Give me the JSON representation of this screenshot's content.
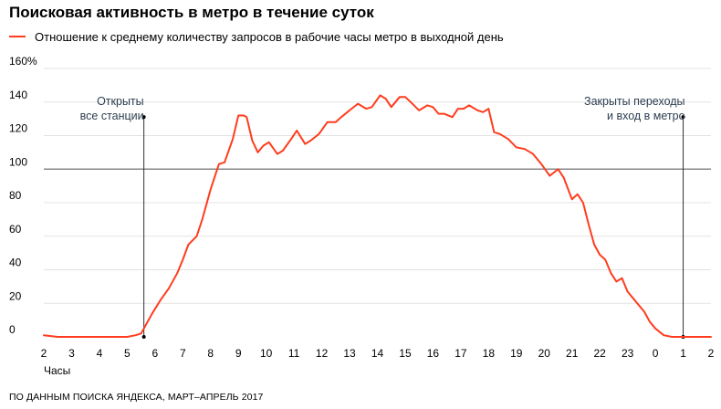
{
  "title": "Поисковая активность в метро в течение суток",
  "legend": {
    "label": "Отношение к среднему количеству запросов в рабочие часы метро в выходной день",
    "color": "#ff3c1e"
  },
  "source": "ПО ДАННЫМ ПОИСКА ЯНДЕКСА, МАРТ–АПРЕЛЬ 2017",
  "chart_data": {
    "type": "line",
    "xlabel": "Часы",
    "ylabel": "",
    "x_tick_labels": [
      "2",
      "3",
      "4",
      "5",
      "6",
      "7",
      "8",
      "9",
      "10",
      "11",
      "12",
      "13",
      "14",
      "15",
      "16",
      "17",
      "18",
      "19",
      "20",
      "21",
      "22",
      "23",
      "0",
      "1",
      "2"
    ],
    "y_ticks": [
      {
        "value": 0,
        "label": "0"
      },
      {
        "value": 20,
        "label": "20"
      },
      {
        "value": 40,
        "label": "40"
      },
      {
        "value": 60,
        "label": "60"
      },
      {
        "value": 80,
        "label": "80"
      },
      {
        "value": 100,
        "label": "100"
      },
      {
        "value": 120,
        "label": "120"
      },
      {
        "value": 140,
        "label": "140"
      },
      {
        "value": 160,
        "label": "160%"
      }
    ],
    "ylim": [
      0,
      160
    ],
    "xlim": [
      2,
      26
    ],
    "grid": true,
    "reference_line": 100,
    "annotations": [
      {
        "x": 5.6,
        "y_text": 130,
        "lines": [
          "Открыты",
          "все станции"
        ],
        "anchor": "end"
      },
      {
        "x": 25.0,
        "y_text": 130,
        "lines": [
          "Закрыты переходы",
          "и вход в метро"
        ],
        "anchor": "end"
      }
    ],
    "series": [
      {
        "color": "#ff3c1e",
        "x": [
          2.0,
          2.5,
          3.0,
          3.5,
          4.0,
          4.5,
          5.0,
          5.3,
          5.5,
          5.7,
          5.9,
          6.2,
          6.5,
          6.8,
          7.0,
          7.2,
          7.5,
          7.7,
          8.0,
          8.3,
          8.5,
          8.8,
          9.0,
          9.2,
          9.3,
          9.5,
          9.7,
          9.9,
          10.1,
          10.4,
          10.6,
          10.9,
          11.1,
          11.4,
          11.6,
          11.9,
          12.2,
          12.5,
          12.7,
          13.0,
          13.3,
          13.6,
          13.8,
          14.1,
          14.3,
          14.5,
          14.8,
          15.0,
          15.2,
          15.5,
          15.8,
          16.0,
          16.2,
          16.4,
          16.7,
          16.9,
          17.1,
          17.3,
          17.6,
          17.8,
          18.0,
          18.2,
          18.4,
          18.7,
          19.0,
          19.3,
          19.6,
          19.9,
          20.2,
          20.5,
          20.7,
          21.0,
          21.2,
          21.4,
          21.6,
          21.8,
          22.0,
          22.2,
          22.4,
          22.6,
          22.8,
          23.0,
          23.2,
          23.4,
          23.6,
          23.8,
          24.0,
          24.3,
          24.6,
          24.9,
          25.1,
          25.3,
          25.6,
          26.0
        ],
        "values": [
          1,
          0,
          0,
          0,
          0,
          0,
          0,
          1,
          2,
          8,
          14,
          22,
          29,
          38,
          46,
          55,
          60,
          70,
          88,
          103,
          104,
          118,
          132,
          132,
          131,
          117,
          110,
          114,
          116,
          109,
          111,
          118,
          123,
          115,
          117,
          121,
          128,
          128,
          131,
          135,
          139,
          136,
          137,
          144,
          142,
          137,
          143,
          143,
          140,
          135,
          138,
          137,
          133,
          133,
          131,
          136,
          136,
          138,
          135,
          134,
          136,
          122,
          121,
          118,
          113,
          112,
          109,
          103,
          96,
          100,
          95,
          82,
          85,
          80,
          67,
          55,
          49,
          46,
          38,
          33,
          35,
          27,
          23,
          19,
          15,
          9,
          5,
          1,
          0,
          0,
          0,
          0,
          0,
          0
        ]
      }
    ]
  }
}
